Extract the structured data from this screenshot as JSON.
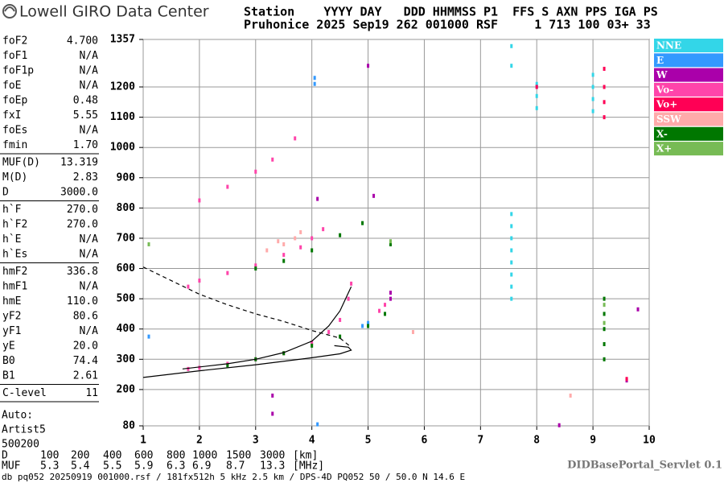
{
  "header": {
    "logo": "Lowell GIRO Data Center",
    "line1": "Station    YYYY DAY   DDD HHMMSS P1  FFS S AXN PPS IGA PS",
    "line2": "Pruhonice 2025 Sep19 262 001000 RSF     1 713 100 03+ 33"
  },
  "params": [
    [
      [
        "foF2",
        "4.700"
      ],
      [
        "foF1",
        "N/A"
      ],
      [
        "foF1p",
        "N/A"
      ],
      [
        "foE",
        "N/A"
      ],
      [
        "foEp",
        "0.48"
      ],
      [
        "fxI",
        "5.55"
      ],
      [
        "foEs",
        "N/A"
      ],
      [
        "fmin",
        "1.70"
      ]
    ],
    [
      [
        "MUF(D)",
        "13.319"
      ],
      [
        "M(D)",
        "2.83"
      ],
      [
        "D",
        "3000.0"
      ]
    ],
    [
      [
        "h`F",
        "270.0"
      ],
      [
        "h`F2",
        "270.0"
      ],
      [
        "h`E",
        "N/A"
      ],
      [
        "h`Es",
        "N/A"
      ]
    ],
    [
      [
        "hmF2",
        "336.8"
      ],
      [
        "hmF1",
        "N/A"
      ],
      [
        "hmE",
        "110.0"
      ],
      [
        "yF2",
        "80.6"
      ],
      [
        "yF1",
        "N/A"
      ],
      [
        "yE",
        "20.0"
      ],
      [
        "B0",
        "74.4"
      ],
      [
        "B1",
        "2.61"
      ]
    ],
    [
      [
        "C-level",
        "11"
      ]
    ]
  ],
  "auto": [
    "Auto:",
    "Artist5",
    "500200"
  ],
  "chart_data": {
    "type": "scatter",
    "xlim": [
      1,
      10
    ],
    "ylim": [
      80,
      1357
    ],
    "xticks": [
      1,
      2,
      3,
      4,
      5,
      6,
      7,
      8,
      9,
      10
    ],
    "yticks": [
      80,
      200,
      300,
      400,
      500,
      600,
      700,
      800,
      900,
      1000,
      1100,
      1200,
      1357
    ],
    "grid": true,
    "series": [
      {
        "name": "NNE",
        "color": "#33d6e8",
        "x": [
          7.55,
          7.55,
          7.55,
          7.55,
          7.55,
          7.55,
          7.55,
          7.55,
          7.55,
          8.0,
          8.0,
          8.0,
          9.0,
          9.0,
          9.0,
          9.0,
          7.55
        ],
        "y": [
          500,
          540,
          580,
          620,
          660,
          700,
          740,
          780,
          1270,
          1130,
          1170,
          1210,
          1120,
          1160,
          1200,
          1240,
          1335
        ]
      },
      {
        "name": "E",
        "color": "#3399ff",
        "x": [
          4.05,
          4.05,
          5.0,
          4.9,
          8.0,
          1.1,
          4.1
        ],
        "y": [
          1210,
          1230,
          420,
          410,
          1200,
          375,
          85
        ]
      },
      {
        "name": "W",
        "color": "#aa00aa",
        "x": [
          5.4,
          5.4,
          3.3,
          3.3,
          5.0,
          9.8,
          9.6,
          8.4,
          4.1,
          5.1
        ],
        "y": [
          500,
          520,
          180,
          120,
          1270,
          465,
          230,
          82,
          830,
          840
        ]
      },
      {
        "name": "Vo-",
        "color": "#ff44aa",
        "x": [
          1.8,
          2.0,
          2.5,
          3.0,
          3.5,
          4.0,
          4.3,
          4.5,
          4.65,
          4.7,
          1.8,
          2.0,
          2.5,
          3.0,
          3.5,
          3.8,
          4.0,
          4.2,
          2.0,
          2.5,
          3.0,
          3.3,
          3.7,
          5.2,
          5.3
        ],
        "y": [
          268,
          272,
          285,
          300,
          320,
          355,
          390,
          430,
          500,
          550,
          540,
          560,
          585,
          610,
          645,
          670,
          700,
          730,
          825,
          870,
          920,
          960,
          1030,
          460,
          480
        ]
      },
      {
        "name": "Vo+",
        "color": "#ff0055",
        "x": [
          8.0,
          9.2,
          9.2,
          9.2,
          9.2,
          9.6
        ],
        "y": [
          1200,
          1100,
          1150,
          1200,
          1260,
          235
        ]
      },
      {
        "name": "SSW",
        "color": "#ffaaaa",
        "x": [
          3.5,
          3.7,
          3.8,
          3.2,
          3.4,
          5.8,
          8.6
        ],
        "y": [
          680,
          700,
          720,
          660,
          690,
          390,
          180
        ]
      },
      {
        "name": "X-",
        "color": "#007700",
        "x": [
          2.5,
          3.0,
          3.5,
          4.0,
          4.5,
          5.0,
          5.3,
          3.0,
          3.5,
          4.0,
          4.5,
          4.9,
          5.4,
          9.2,
          9.2,
          9.2,
          9.2,
          9.2
        ],
        "y": [
          280,
          300,
          320,
          345,
          375,
          410,
          450,
          600,
          625,
          660,
          710,
          750,
          680,
          300,
          350,
          400,
          450,
          500
        ]
      },
      {
        "name": "X+",
        "color": "#77bb55",
        "x": [
          9.2,
          5.4,
          9.2,
          1.1
        ],
        "y": [
          420,
          690,
          480,
          680
        ]
      }
    ],
    "lines": [
      {
        "style": "solid",
        "x": [
          1.7,
          2.5,
          3.0,
          3.5,
          4.0,
          4.3,
          4.5,
          4.7
        ],
        "y": [
          268,
          285,
          300,
          322,
          360,
          410,
          460,
          540
        ]
      },
      {
        "style": "solid",
        "x": [
          1.0,
          2.0,
          3.0,
          4.0,
          4.5,
          4.7,
          4.65,
          4.4
        ],
        "y": [
          240,
          262,
          282,
          305,
          318,
          330,
          340,
          345
        ]
      },
      {
        "style": "dashed",
        "x": [
          1.0,
          1.5,
          2.0,
          2.5,
          3.0,
          3.5,
          4.0,
          4.5,
          4.7
        ],
        "y": [
          605,
          560,
          515,
          480,
          450,
          425,
          395,
          370,
          340
        ]
      }
    ]
  },
  "muf_table": {
    "rows": [
      [
        "D",
        "100",
        "200",
        "400",
        "600",
        "800",
        "1000",
        "1500",
        "3000",
        "[km]"
      ],
      [
        "MUF",
        "5.3",
        "5.4",
        "5.5",
        "5.9",
        "6.3",
        "6.9",
        "8.7",
        "13.3",
        "[MHz]"
      ]
    ]
  },
  "footer": {
    "file": "db pq052 20250919 001000.rsf / 181fx512h 5 kHz 2.5 km / DPS-4D PQ052 50 / 50.0 N 14.6 E",
    "version": "DIDBasePortal_Servlet 0.1"
  }
}
